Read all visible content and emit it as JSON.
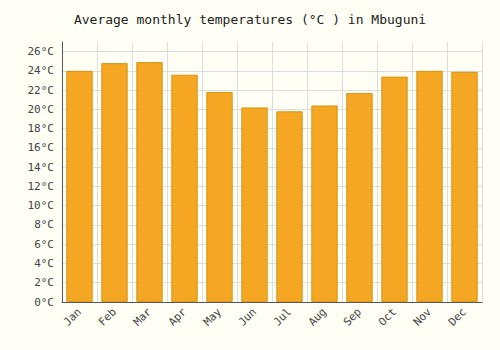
{
  "chart_data": {
    "type": "bar",
    "title": "Average monthly temperatures (°C ) in Mbuguni",
    "categories": [
      "Jan",
      "Feb",
      "Mar",
      "Apr",
      "May",
      "Jun",
      "Jul",
      "Aug",
      "Sep",
      "Oct",
      "Nov",
      "Dec"
    ],
    "values": [
      24.0,
      24.8,
      24.9,
      23.6,
      21.8,
      20.2,
      19.8,
      20.4,
      21.7,
      23.4,
      24.0,
      23.9
    ],
    "color": "#F5A623",
    "ylim": [
      0,
      27
    ],
    "yticks": [
      {
        "value": 0,
        "label": "0°C"
      },
      {
        "value": 2,
        "label": "2°C"
      },
      {
        "value": 4,
        "label": "4°C"
      },
      {
        "value": 6,
        "label": "6°C"
      },
      {
        "value": 8,
        "label": "8°C"
      },
      {
        "value": 10,
        "label": "10°C"
      },
      {
        "value": 12,
        "label": "12°C"
      },
      {
        "value": 14,
        "label": "14°C"
      },
      {
        "value": 16,
        "label": "16°C"
      },
      {
        "value": 18,
        "label": "18°C"
      },
      {
        "value": 20,
        "label": "20°C"
      },
      {
        "value": 22,
        "label": "22°C"
      },
      {
        "value": 24,
        "label": "24°C"
      },
      {
        "value": 26,
        "label": "26°C"
      }
    ],
    "grid": true
  }
}
